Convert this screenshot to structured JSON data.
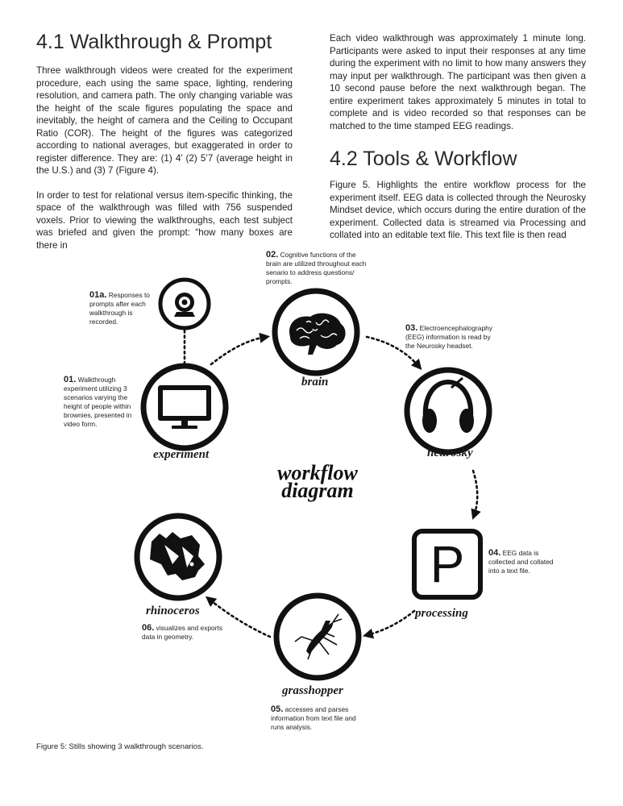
{
  "sections": {
    "s41": {
      "heading": "4.1 Walkthrough & Prompt",
      "p1": "Three walkthrough videos were created for the experiment procedure, each using the same space, lighting, rendering resolution, and camera path. The only changing variable was the height of the scale figures populating the space and inevitably, the height of camera and the Ceiling to Occupant Ratio (COR). The height of the figures was categorized according to national averages, but exaggerated in order to register difference. They are: (1) 4’ (2) 5’7 (average height in the U.S.) and (3) 7 (Figure 4).",
      "p2": "In order to test for relational versus item-specific thinking, the space of the walkthrough was filled with 756 suspended voxels. Prior to viewing the walkthroughs, each test subject was briefed and given the prompt: “how many boxes are there in"
    },
    "col2_continued": "Each video walkthrough was approximately 1 minute long. Participants were asked to input their responses at any time during the experiment with no limit to how many answers they may input per walkthrough. The participant was then given a 10 second pause before the next walkthrough began. The entire experiment takes approximately 5 minutes in total to complete and is video recorded so that responses can be matched to the time stamped EEG readings.",
    "s42": {
      "heading": "4.2 Tools & Workflow",
      "p1": "Figure 5. Highlights the entire workflow process for the experiment itself. EEG data is collected through the Neurosky Mindset device, which occurs during the entire duration of the experiment. Collected data is streamed via Processing and collated into an editable text file. This text file is then read"
    }
  },
  "diagram": {
    "title_line1": "workflow",
    "title_line2": "diagram",
    "nodes": {
      "experiment": {
        "label": "experiment",
        "icon": "monitor-icon"
      },
      "webcam": {
        "icon": "webcam-icon"
      },
      "brain": {
        "label": "brain",
        "icon": "brain-icon"
      },
      "neurosky": {
        "label": "neurosky",
        "icon": "headphones-icon"
      },
      "processing": {
        "label": "processing",
        "icon": "processing-p-icon",
        "glyph": "P"
      },
      "grasshopper": {
        "label": "grasshopper",
        "icon": "grasshopper-icon"
      },
      "rhinoceros": {
        "label": "rhinoceros",
        "icon": "rhino-icon"
      }
    },
    "notes": {
      "n01a": {
        "num": "01a.",
        "text": "Responses to prompts after each walkthrough is recorded."
      },
      "n01": {
        "num": "01.",
        "text": "Walkthrough experiment utilizing 3 scenarios varying the height of people within brownies, presented in video form."
      },
      "n02": {
        "num": "02.",
        "text": "Cognitive functions of the brain are utilized throughout each senario to address questions/ prompts."
      },
      "n03": {
        "num": "03.",
        "text": "Electroencephalography (EEG) information is read by the Neurosky headset."
      },
      "n04": {
        "num": "04.",
        "text": "EEG data is collected and collated into a text file."
      },
      "n05": {
        "num": "05.",
        "text": "accesses and parses information from text file and runs analysis."
      },
      "n06": {
        "num": "06.",
        "text": "visualizes and exports data in geometry."
      }
    }
  },
  "caption": "Figure 5: Stills showing 3 walkthrough scenarios.",
  "colors": {
    "text": "#222222",
    "ink": "#111111",
    "background": "#ffffff"
  }
}
